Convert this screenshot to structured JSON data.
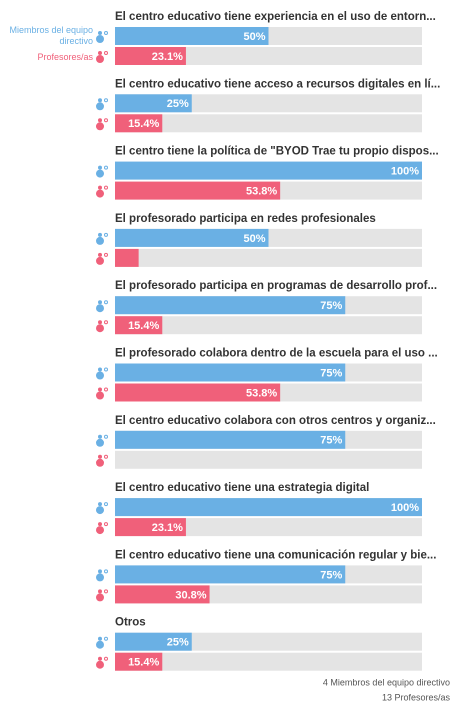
{
  "chart_data": {
    "type": "bar",
    "orientation": "horizontal",
    "categories": [
      "El centro educativo tiene experiencia en el uso de entorn...",
      "El centro educativo tiene acceso a recursos digitales en lí...",
      "El centro tiene la política de \"BYOD Trae tu propio dispos...",
      "El profesorado participa en redes profesionales",
      "El profesorado participa en programas de desarrollo prof...",
      "El profesorado colabora dentro de la escuela para el uso ...",
      "El centro educativo colabora con otros centros y organiz...",
      "El centro educativo tiene una estrategia digital",
      "El centro educativo tiene una comunicación regular y bie...",
      "Otros"
    ],
    "series": [
      {
        "name": "Miembros del equipo directivo",
        "color": "#6ab0e4",
        "values": [
          50,
          25,
          100,
          50,
          75,
          75,
          75,
          100,
          75,
          25
        ],
        "value_labels": [
          "50%",
          "25%",
          "100%",
          "50%",
          "75%",
          "75%",
          "75%",
          "100%",
          "75%",
          "25%"
        ]
      },
      {
        "name": "Profesores/as",
        "color": "#f0607a",
        "values": [
          23.1,
          15.4,
          53.8,
          7.7,
          15.4,
          53.8,
          0,
          23.1,
          30.8,
          15.4
        ],
        "value_labels": [
          "23.1%",
          "15.4%",
          "53.8%",
          null,
          "15.4%",
          "53.8%",
          null,
          "23.1%",
          "30.8%",
          "15.4%"
        ]
      }
    ],
    "xlim": [
      0,
      100
    ],
    "track_color": "#e4e4e4",
    "footer": [
      "4 Miembros del equipo directivo",
      "13 Profesores/as"
    ]
  }
}
